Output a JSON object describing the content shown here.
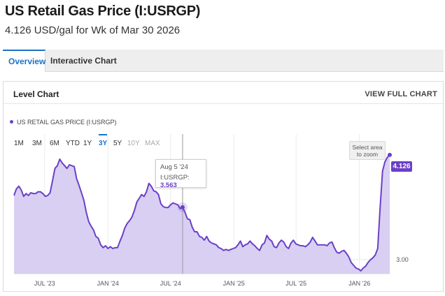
{
  "header": {
    "title": "US Retail Gas Price (I:USRGP)",
    "subtitle": "4.126 USD/gal for Wk of Mar 30 2026"
  },
  "tabs": [
    {
      "label": "Overview",
      "active": true
    },
    {
      "label": "Interactive Chart",
      "active": false
    }
  ],
  "panel": {
    "title": "Level Chart",
    "view_full_label": "VIEW FULL CHART"
  },
  "legend": {
    "label": "US RETAIL GAS PRICE (I:USRGP)"
  },
  "ranges": [
    {
      "label": "1M",
      "state": "normal"
    },
    {
      "label": "3M",
      "state": "normal"
    },
    {
      "label": "6M",
      "state": "normal"
    },
    {
      "label": "YTD",
      "state": "normal"
    },
    {
      "label": "1Y",
      "state": "normal"
    },
    {
      "label": "3Y",
      "state": "active"
    },
    {
      "label": "5Y",
      "state": "normal"
    },
    {
      "label": "10Y",
      "state": "disabled"
    },
    {
      "label": "MAX",
      "state": "disabled"
    }
  ],
  "zoom": {
    "line1": "Select area",
    "line2": "to zoom"
  },
  "tooltip": {
    "date": "Aug 5 '24",
    "series": "I:USRGP:",
    "value": "3.563"
  },
  "last_value_label": "4.126",
  "colors": {
    "series": "#6a40c8",
    "fill": "#d9cff3",
    "accent": "#1a73c8"
  },
  "chart_data": {
    "type": "area",
    "series": [
      {
        "name": "US RETAIL GAS PRICE (I:USRGP)",
        "points": [
          [
            "2023-04-03",
            3.69
          ],
          [
            "2023-04-10",
            3.76
          ],
          [
            "2023-04-17",
            3.79
          ],
          [
            "2023-04-24",
            3.75
          ],
          [
            "2023-05-01",
            3.68
          ],
          [
            "2023-05-08",
            3.71
          ],
          [
            "2023-05-15",
            3.69
          ],
          [
            "2023-05-22",
            3.72
          ],
          [
            "2023-05-29",
            3.71
          ],
          [
            "2023-06-05",
            3.71
          ],
          [
            "2023-06-12",
            3.73
          ],
          [
            "2023-06-19",
            3.73
          ],
          [
            "2023-06-26",
            3.71
          ],
          [
            "2023-07-03",
            3.68
          ],
          [
            "2023-07-10",
            3.69
          ],
          [
            "2023-07-17",
            3.72
          ],
          [
            "2023-07-24",
            3.85
          ],
          [
            "2023-07-31",
            3.98
          ],
          [
            "2023-08-07",
            4.01
          ],
          [
            "2023-08-14",
            4.08
          ],
          [
            "2023-08-21",
            4.04
          ],
          [
            "2023-08-28",
            4.01
          ],
          [
            "2023-09-04",
            3.98
          ],
          [
            "2023-09-11",
            4.02
          ],
          [
            "2023-09-18",
            4.01
          ],
          [
            "2023-09-25",
            4.0
          ],
          [
            "2023-10-02",
            3.87
          ],
          [
            "2023-10-09",
            3.8
          ],
          [
            "2023-10-16",
            3.72
          ],
          [
            "2023-10-23",
            3.64
          ],
          [
            "2023-10-30",
            3.51
          ],
          [
            "2023-11-06",
            3.41
          ],
          [
            "2023-11-13",
            3.36
          ],
          [
            "2023-11-20",
            3.32
          ],
          [
            "2023-11-27",
            3.25
          ],
          [
            "2023-12-04",
            3.23
          ],
          [
            "2023-12-11",
            3.16
          ],
          [
            "2023-12-18",
            3.13
          ],
          [
            "2023-12-25",
            3.15
          ],
          [
            "2024-01-01",
            3.12
          ],
          [
            "2024-01-08",
            3.14
          ],
          [
            "2024-01-15",
            3.12
          ],
          [
            "2024-01-22",
            3.13
          ],
          [
            "2024-01-29",
            3.13
          ],
          [
            "2024-02-05",
            3.2
          ],
          [
            "2024-02-12",
            3.26
          ],
          [
            "2024-02-19",
            3.34
          ],
          [
            "2024-02-26",
            3.39
          ],
          [
            "2024-03-04",
            3.42
          ],
          [
            "2024-03-11",
            3.46
          ],
          [
            "2024-03-18",
            3.53
          ],
          [
            "2024-03-25",
            3.62
          ],
          [
            "2024-04-01",
            3.66
          ],
          [
            "2024-04-08",
            3.7
          ],
          [
            "2024-04-15",
            3.68
          ],
          [
            "2024-04-22",
            3.73
          ],
          [
            "2024-04-29",
            3.82
          ],
          [
            "2024-05-06",
            3.79
          ],
          [
            "2024-05-13",
            3.74
          ],
          [
            "2024-05-20",
            3.73
          ],
          [
            "2024-05-27",
            3.7
          ],
          [
            "2024-06-03",
            3.6
          ],
          [
            "2024-06-10",
            3.57
          ],
          [
            "2024-06-17",
            3.56
          ],
          [
            "2024-06-24",
            3.56
          ],
          [
            "2024-07-01",
            3.59
          ],
          [
            "2024-07-08",
            3.61
          ],
          [
            "2024-07-15",
            3.6
          ],
          [
            "2024-07-22",
            3.59
          ],
          [
            "2024-07-29",
            3.55
          ],
          [
            "2024-08-05",
            3.563
          ],
          [
            "2024-08-12",
            3.51
          ],
          [
            "2024-08-19",
            3.44
          ],
          [
            "2024-08-26",
            3.43
          ],
          [
            "2024-09-02",
            3.35
          ],
          [
            "2024-09-09",
            3.3
          ],
          [
            "2024-09-16",
            3.3
          ],
          [
            "2024-09-23",
            3.25
          ],
          [
            "2024-09-30",
            3.24
          ],
          [
            "2024-10-07",
            3.21
          ],
          [
            "2024-10-14",
            3.25
          ],
          [
            "2024-10-21",
            3.2
          ],
          [
            "2024-10-28",
            3.18
          ],
          [
            "2024-11-04",
            3.17
          ],
          [
            "2024-11-11",
            3.16
          ],
          [
            "2024-11-18",
            3.13
          ],
          [
            "2024-11-25",
            3.12
          ],
          [
            "2024-12-02",
            3.1
          ],
          [
            "2024-12-09",
            3.11
          ],
          [
            "2024-12-16",
            3.1
          ],
          [
            "2024-12-23",
            3.11
          ],
          [
            "2024-12-30",
            3.12
          ],
          [
            "2025-01-06",
            3.13
          ],
          [
            "2025-01-13",
            3.16
          ],
          [
            "2025-01-20",
            3.2
          ],
          [
            "2025-01-27",
            3.14
          ],
          [
            "2025-02-03",
            3.16
          ],
          [
            "2025-02-10",
            3.17
          ],
          [
            "2025-02-17",
            3.2
          ],
          [
            "2025-02-24",
            3.17
          ],
          [
            "2025-03-03",
            3.15
          ],
          [
            "2025-03-10",
            3.12
          ],
          [
            "2025-03-17",
            3.1
          ],
          [
            "2025-03-24",
            3.16
          ],
          [
            "2025-03-31",
            3.18
          ],
          [
            "2025-04-07",
            3.26
          ],
          [
            "2025-04-14",
            3.22
          ],
          [
            "2025-04-21",
            3.2
          ],
          [
            "2025-04-28",
            3.14
          ],
          [
            "2025-05-05",
            3.13
          ],
          [
            "2025-05-12",
            3.18
          ],
          [
            "2025-05-19",
            3.21
          ],
          [
            "2025-05-26",
            3.19
          ],
          [
            "2025-06-02",
            3.14
          ],
          [
            "2025-06-09",
            3.12
          ],
          [
            "2025-06-16",
            3.18
          ],
          [
            "2025-06-23",
            3.21
          ],
          [
            "2025-06-30",
            3.17
          ],
          [
            "2025-07-07",
            3.16
          ],
          [
            "2025-07-14",
            3.15
          ],
          [
            "2025-07-21",
            3.15
          ],
          [
            "2025-07-28",
            3.14
          ],
          [
            "2025-08-04",
            3.16
          ],
          [
            "2025-08-11",
            3.19
          ],
          [
            "2025-08-18",
            3.24
          ],
          [
            "2025-08-25",
            3.2
          ],
          [
            "2025-09-01",
            3.16
          ],
          [
            "2025-09-08",
            3.16
          ],
          [
            "2025-09-15",
            3.16
          ],
          [
            "2025-09-22",
            3.16
          ],
          [
            "2025-09-29",
            3.15
          ],
          [
            "2025-10-06",
            3.18
          ],
          [
            "2025-10-13",
            3.19
          ],
          [
            "2025-10-20",
            3.13
          ],
          [
            "2025-10-27",
            3.08
          ],
          [
            "2025-11-03",
            3.07
          ],
          [
            "2025-11-10",
            3.09
          ],
          [
            "2025-11-17",
            3.1
          ],
          [
            "2025-11-24",
            3.07
          ],
          [
            "2025-12-01",
            3.03
          ],
          [
            "2025-12-08",
            2.97
          ],
          [
            "2025-12-15",
            2.94
          ],
          [
            "2025-12-22",
            2.91
          ],
          [
            "2025-12-29",
            2.9
          ],
          [
            "2026-01-05",
            2.88
          ],
          [
            "2026-01-12",
            2.91
          ],
          [
            "2026-01-19",
            2.93
          ],
          [
            "2026-01-26",
            2.97
          ],
          [
            "2026-02-02",
            3.0
          ],
          [
            "2026-02-09",
            3.02
          ],
          [
            "2026-02-16",
            3.05
          ],
          [
            "2026-02-23",
            3.12
          ],
          [
            "2026-03-02",
            3.55
          ],
          [
            "2026-03-09",
            3.95
          ],
          [
            "2026-03-16",
            4.05
          ],
          [
            "2026-03-23",
            4.1
          ],
          [
            "2026-03-30",
            4.126
          ]
        ]
      }
    ],
    "x_ticks": [
      {
        "label": "JUL '23",
        "date": "2023-07-01"
      },
      {
        "label": "JAN '24",
        "date": "2024-01-01"
      },
      {
        "label": "JUL '24",
        "date": "2024-07-01"
      },
      {
        "label": "JAN '25",
        "date": "2025-01-01"
      },
      {
        "label": "JUL '25",
        "date": "2025-07-01"
      },
      {
        "label": "JAN '26",
        "date": "2026-01-01"
      }
    ],
    "y_ticks": [
      {
        "label": "3.00",
        "value": 3.0
      }
    ],
    "xlim": [
      "2023-04-03",
      "2026-03-30"
    ],
    "ylim": [
      2.85,
      4.35
    ],
    "grid": true,
    "crosshair_date": "2024-08-05"
  }
}
